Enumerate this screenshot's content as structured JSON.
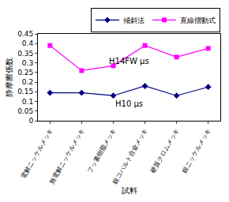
{
  "chart_data": {
    "type": "line",
    "x_label": "試料",
    "y_label": "静摩擦係数",
    "categories": [
      "電解ニッケルメッキ",
      "無電解ニッケルメッキ",
      "フッ素樹脂メッキ",
      "銀コバルト合金メッキ",
      "硬質クロムメッキ",
      "銀ニッケルメッキ"
    ],
    "series": [
      {
        "name": "傾斜法",
        "color": "#000080",
        "marker": "diamond",
        "line_style": "solid",
        "values": [
          0.145,
          0.145,
          0.13,
          0.18,
          0.13,
          0.175
        ]
      },
      {
        "name": "直線摺動式",
        "color": "#ff00ff",
        "marker": "square",
        "line_style": "solid",
        "values": [
          0.39,
          0.26,
          0.285,
          0.39,
          0.33,
          0.375
        ]
      }
    ],
    "annotations": [
      {
        "text": "H14FW μs",
        "x": 2.5,
        "y": 0.31
      },
      {
        "text": "H10 μs",
        "x": 2.5,
        "y": 0.09
      }
    ],
    "ylim": [
      0,
      0.45
    ],
    "yticks": [
      0,
      0.05,
      0.1,
      0.15,
      0.2,
      0.25,
      0.3,
      0.35,
      0.4,
      0.45
    ],
    "grid": false,
    "legend": "top right"
  }
}
